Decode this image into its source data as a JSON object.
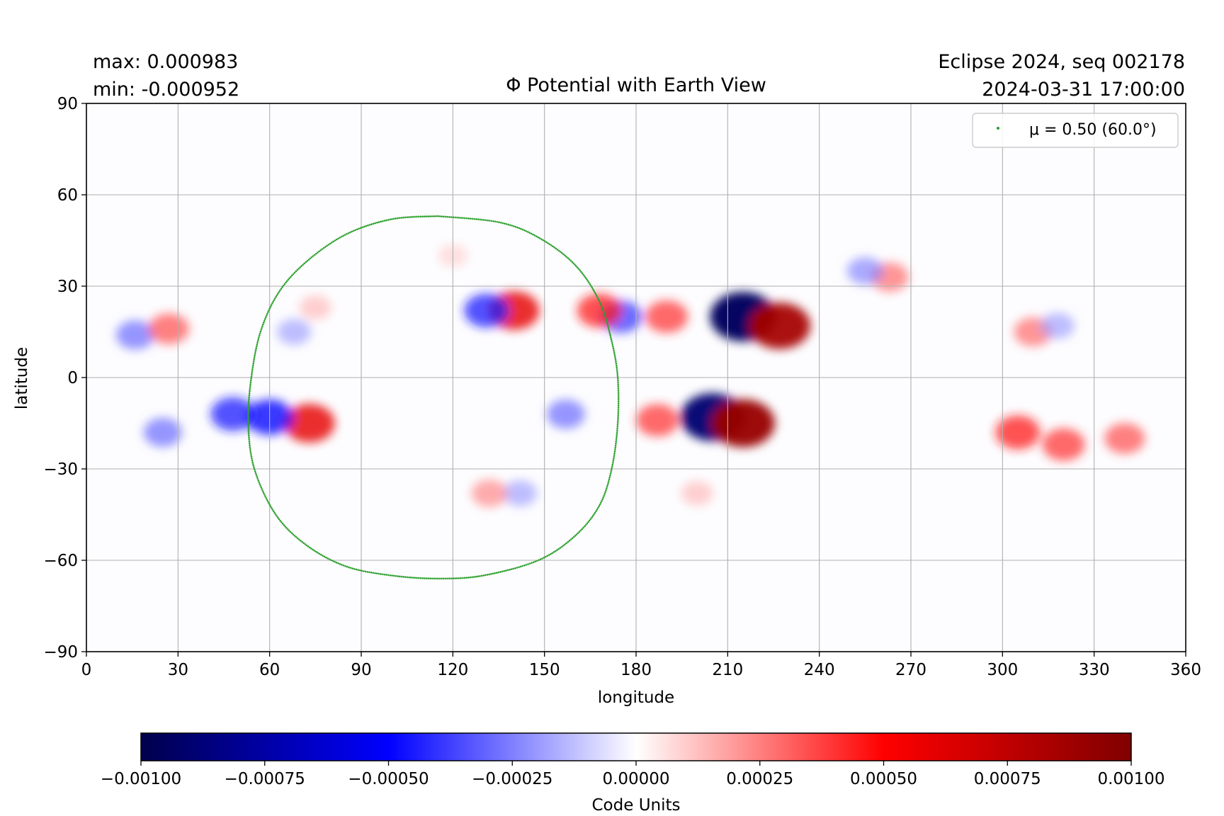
{
  "header": {
    "max_text": "max:  0.000983",
    "min_text": "min:  -0.000952",
    "run_text": "Eclipse 2024, seq 002178",
    "time_text": "2024-03-31 17:00:00"
  },
  "chart_data": {
    "type": "heatmap",
    "title": "Φ Potential with Earth View",
    "xlabel": "longitude",
    "ylabel": "latitude",
    "xlim": [
      0,
      360
    ],
    "ylim": [
      -90,
      90
    ],
    "x_ticks": [
      "0",
      "30",
      "60",
      "90",
      "120",
      "150",
      "180",
      "210",
      "240",
      "270",
      "300",
      "330",
      "360"
    ],
    "x_tick_values": [
      0,
      30,
      60,
      90,
      120,
      150,
      180,
      210,
      240,
      270,
      300,
      330,
      360
    ],
    "y_ticks": [
      "90",
      "60",
      "30",
      "0",
      "−30",
      "−60",
      "−90"
    ],
    "y_tick_values": [
      90,
      60,
      30,
      0,
      -30,
      -60,
      -90
    ],
    "grid": true,
    "legend": {
      "label": "μ = 0.50 (60.0°)",
      "position": "top-right",
      "color": "#2ca02c"
    },
    "earth_view_contour": {
      "name": "μ = 0.50 (60.0°)",
      "color": "#2ca02c",
      "points": [
        [
          115,
          53
        ],
        [
          135,
          51
        ],
        [
          148,
          46
        ],
        [
          160,
          37
        ],
        [
          168,
          25
        ],
        [
          172,
          12
        ],
        [
          174,
          0
        ],
        [
          174,
          -15
        ],
        [
          172,
          -30
        ],
        [
          168,
          -42
        ],
        [
          160,
          -52
        ],
        [
          148,
          -60
        ],
        [
          130,
          -65
        ],
        [
          115,
          -66
        ],
        [
          100,
          -65
        ],
        [
          85,
          -62
        ],
        [
          72,
          -55
        ],
        [
          62,
          -45
        ],
        [
          55,
          -30
        ],
        [
          53,
          -15
        ],
        [
          54,
          0
        ],
        [
          57,
          15
        ],
        [
          63,
          28
        ],
        [
          72,
          38
        ],
        [
          85,
          47
        ],
        [
          100,
          52
        ],
        [
          115,
          53
        ]
      ]
    },
    "field_features": [
      {
        "lon": 215,
        "lat": 20,
        "value": -0.00095
      },
      {
        "lon": 227,
        "lat": 17,
        "value": 0.00085
      },
      {
        "lon": 205,
        "lat": -13,
        "value": -0.0009
      },
      {
        "lon": 215,
        "lat": -15,
        "value": 0.0009
      },
      {
        "lon": 140,
        "lat": 22,
        "value": 0.0006
      },
      {
        "lon": 131,
        "lat": 22,
        "value": -0.00045
      },
      {
        "lon": 175,
        "lat": 20,
        "value": -0.0004
      },
      {
        "lon": 168,
        "lat": 22,
        "value": 0.00045
      },
      {
        "lon": 190,
        "lat": 20,
        "value": 0.0004
      },
      {
        "lon": 73,
        "lat": -15,
        "value": 0.0006
      },
      {
        "lon": 60,
        "lat": -13,
        "value": -0.0005
      },
      {
        "lon": 48,
        "lat": -12,
        "value": -0.00045
      },
      {
        "lon": 16,
        "lat": 14,
        "value": -0.0003
      },
      {
        "lon": 27,
        "lat": 16,
        "value": 0.00035
      },
      {
        "lon": 305,
        "lat": -18,
        "value": 0.00045
      },
      {
        "lon": 320,
        "lat": -22,
        "value": 0.0004
      },
      {
        "lon": 340,
        "lat": -20,
        "value": 0.00035
      },
      {
        "lon": 310,
        "lat": 15,
        "value": 0.0003
      },
      {
        "lon": 318,
        "lat": 17,
        "value": -0.0002
      },
      {
        "lon": 263,
        "lat": 33,
        "value": 0.0003
      },
      {
        "lon": 255,
        "lat": 35,
        "value": -0.00025
      },
      {
        "lon": 187,
        "lat": -14,
        "value": 0.0004
      },
      {
        "lon": 157,
        "lat": -12,
        "value": -0.0003
      },
      {
        "lon": 25,
        "lat": -18,
        "value": -0.0003
      },
      {
        "lon": 142,
        "lat": -38,
        "value": -0.0002
      },
      {
        "lon": 132,
        "lat": -38,
        "value": 0.00025
      },
      {
        "lon": 120,
        "lat": 40,
        "value": 0.0001
      },
      {
        "lon": 200,
        "lat": -38,
        "value": 0.00015
      },
      {
        "lon": 75,
        "lat": 23,
        "value": 0.00015
      },
      {
        "lon": 68,
        "lat": 15,
        "value": -0.0002
      }
    ],
    "colorbar": {
      "label": "Code Units",
      "vmin": -0.001,
      "vmax": 0.001,
      "ticks": [
        "−0.00100",
        "−0.00075",
        "−0.00050",
        "−0.00025",
        "0.00000",
        "0.00025",
        "0.00050",
        "0.00075",
        "0.00100"
      ],
      "tick_values": [
        -0.001,
        -0.00075,
        -0.0005,
        -0.00025,
        0,
        0.00025,
        0.0005,
        0.00075,
        0.001
      ],
      "colormap": "seismic",
      "stops": [
        "#00004c",
        "#0000ff",
        "#ffffff",
        "#ff0000",
        "#800000"
      ]
    }
  }
}
